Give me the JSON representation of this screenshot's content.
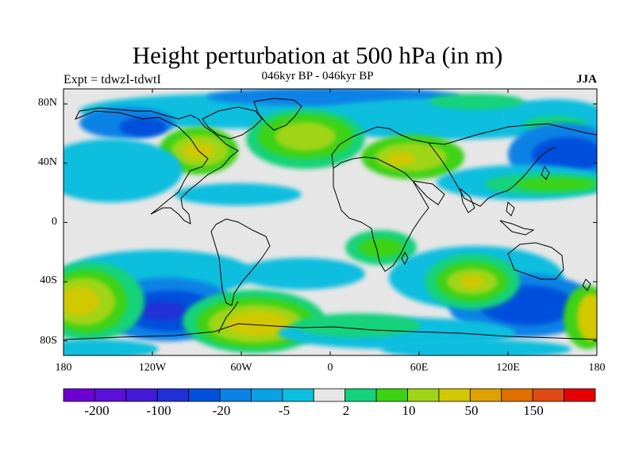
{
  "title": "Height perturbation at 500 hPa (in m)",
  "subtitle": "046kyr BP - 046kyr BP",
  "experiment": "Expt = tdwzI-tdwtI",
  "season": "JJA",
  "axes": {
    "y_ticks": [
      "80N",
      "40N",
      "0",
      "40S",
      "80S"
    ],
    "x_ticks": [
      "180",
      "120W",
      "60W",
      "0",
      "60E",
      "120E",
      "180"
    ]
  },
  "colorbar": {
    "colors": [
      "#6e00d2",
      "#5a10d8",
      "#4418d8",
      "#2030d8",
      "#0050dc",
      "#0a82e6",
      "#0aa0e6",
      "#0abede",
      "#e6e6e6",
      "#14d27a",
      "#3cd214",
      "#a0d414",
      "#d2c800",
      "#e0a000",
      "#e07000",
      "#e04a14",
      "#e60000"
    ],
    "labels": [
      "-200",
      "-100",
      "-20",
      "-5",
      "2",
      "10",
      "50",
      "150"
    ]
  },
  "palette": {
    "missing": "#e6e6e6",
    "lb1": "#0abede",
    "lb2": "#0aa0e6",
    "mb": "#0a82e6",
    "db": "#0050dc",
    "ddb": "#2030d8",
    "g1": "#14d27a",
    "g2": "#3cd214",
    "yg": "#a0d414",
    "y": "#d2c800",
    "o": "#e0a000"
  }
}
